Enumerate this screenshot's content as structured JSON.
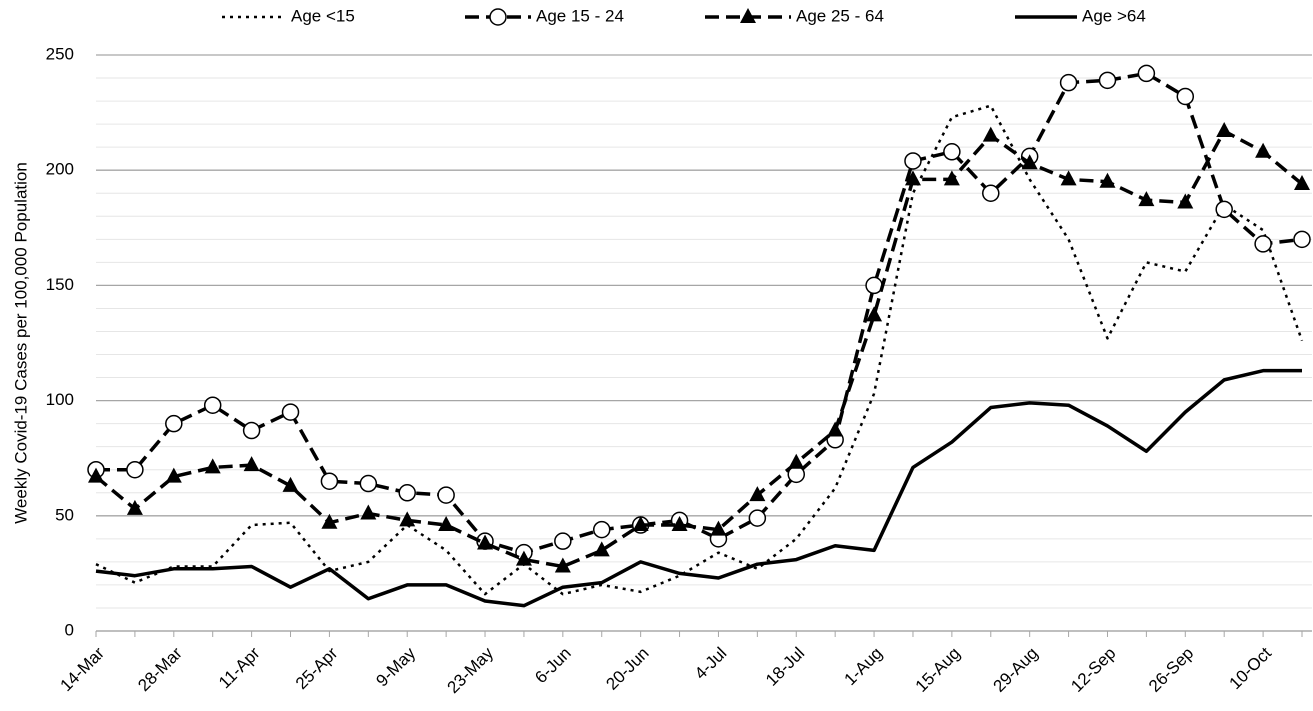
{
  "chart_data": {
    "type": "line",
    "categories": [
      "14-Mar",
      null,
      "28-Mar",
      null,
      "11-Apr",
      null,
      "25-Apr",
      null,
      "9-May",
      null,
      "23-May",
      null,
      "6-Jun",
      null,
      "20-Jun",
      null,
      "4-Jul",
      null,
      "18-Jul",
      null,
      "1-Aug",
      null,
      "15-Aug",
      null,
      "29-Aug",
      null,
      "12-Sep",
      null,
      "26-Sep",
      null,
      "10-Oct",
      null
    ],
    "y_label": "Weekly Covid-19 Cases per 100,000 Population",
    "ylim": [
      0,
      250
    ],
    "yticks": [
      0,
      50,
      100,
      150,
      200,
      250
    ],
    "minor_yticks": [
      10,
      20,
      30,
      40,
      60,
      70,
      80,
      90,
      110,
      120,
      130,
      140,
      160,
      170,
      180,
      190,
      210,
      220,
      230,
      240
    ],
    "grid": true,
    "legend": "top",
    "series": [
      {
        "name": "Age <15",
        "color": "#000000",
        "dash": "dotted",
        "marker": null,
        "values": [
          29,
          21,
          28,
          28,
          46,
          47,
          26,
          30,
          46,
          35,
          16,
          29,
          16,
          20,
          17,
          24,
          34,
          27,
          40,
          62,
          103,
          190,
          223,
          228,
          196,
          170,
          127,
          160,
          156,
          185,
          174,
          126
        ]
      },
      {
        "name": "Age 15 - 24",
        "color": "#000000",
        "dash": "dashed",
        "marker": "circle",
        "values": [
          70,
          70,
          90,
          98,
          87,
          95,
          65,
          64,
          60,
          59,
          39,
          34,
          39,
          44,
          46,
          48,
          40,
          49,
          68,
          83,
          150,
          204,
          208,
          190,
          206,
          238,
          239,
          242,
          232,
          183,
          168,
          170
        ]
      },
      {
        "name": "Age 25 - 64",
        "color": "#000000",
        "dash": "dashed",
        "marker": "triangle",
        "values": [
          67,
          53,
          67,
          71,
          72,
          63,
          47,
          51,
          48,
          46,
          38,
          31,
          28,
          35,
          46,
          46,
          44,
          59,
          73,
          87,
          137,
          196,
          196,
          215,
          203,
          196,
          195,
          187,
          186,
          217,
          208,
          194
        ]
      },
      {
        "name": "Age >64",
        "color": "#000000",
        "dash": "solid",
        "marker": null,
        "values": [
          26,
          24,
          27,
          27,
          28,
          19,
          27,
          14,
          20,
          20,
          13,
          11,
          19,
          21,
          30,
          25,
          23,
          29,
          31,
          37,
          35,
          71,
          82,
          97,
          99,
          98,
          89,
          78,
          95,
          109,
          113,
          113
        ]
      }
    ]
  }
}
